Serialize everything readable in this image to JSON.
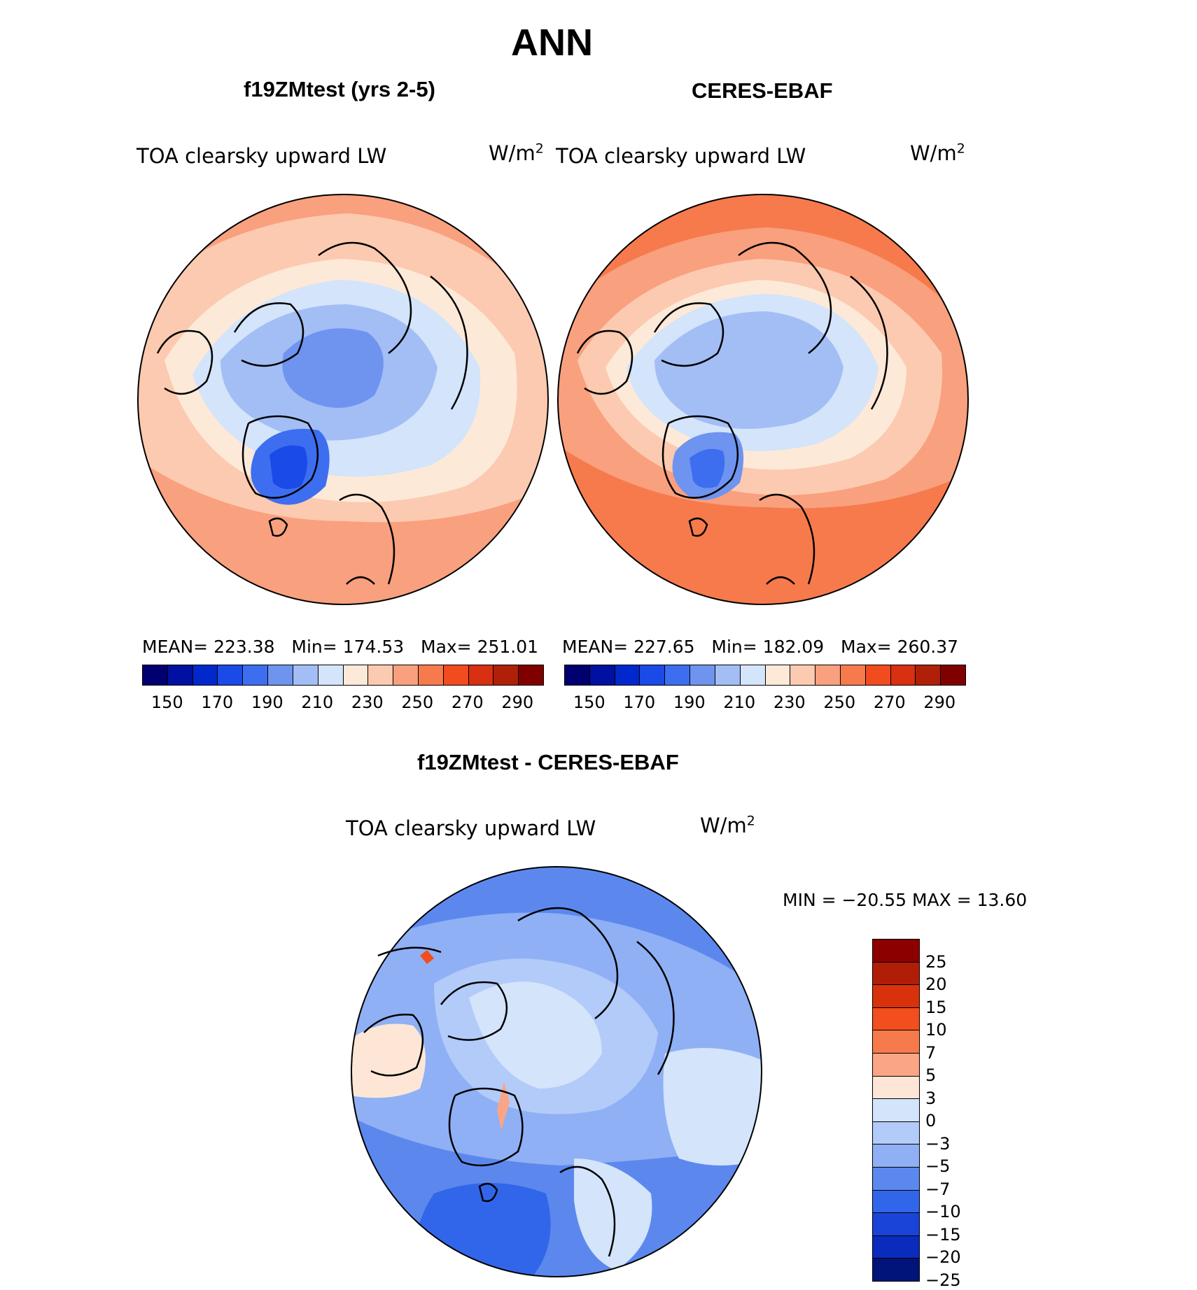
{
  "title": "ANN",
  "panels": [
    {
      "id": "model",
      "title": "f19ZMtest (yrs 2-5)",
      "variable": "TOA clearsky upward LW",
      "units_base": "W/m",
      "units_exp": "2",
      "stats": {
        "mean_label": "MEAN=",
        "mean": "223.38",
        "min_label": "Min=",
        "min": "174.53",
        "max_label": "Max=",
        "max": "251.01"
      }
    },
    {
      "id": "obs",
      "title": "CERES-EBAF",
      "variable": "TOA clearsky upward LW",
      "units_base": "W/m",
      "units_exp": "2",
      "stats": {
        "mean_label": "MEAN=",
        "mean": "227.65",
        "min_label": "Min=",
        "min": "182.09",
        "max_label": "Max=",
        "max": "260.37"
      }
    }
  ],
  "abs_colorbar": {
    "colors": [
      "#000070",
      "#0010a0",
      "#0028cc",
      "#1a4ae8",
      "#3d6ef0",
      "#6f94f0",
      "#a3bef5",
      "#d3e4fb",
      "#fde9d8",
      "#fccab0",
      "#f9a07e",
      "#f67a4c",
      "#f24b1e",
      "#d83010",
      "#b02008",
      "#800000"
    ],
    "ticks": [
      "150",
      "170",
      "190",
      "210",
      "230",
      "250",
      "270",
      "290"
    ]
  },
  "diff": {
    "title": "f19ZMtest - CERES-EBAF",
    "variable": "TOA clearsky upward LW",
    "units_base": "W/m",
    "units_exp": "2",
    "minmax_text": "MIN = −20.55 MAX =   13.60"
  },
  "diff_colorbar": {
    "colors": [
      "#8c0000",
      "#b01e08",
      "#d8320c",
      "#f24e1e",
      "#f67a4c",
      "#f9a586",
      "#fde6d6",
      "#d3e4fb",
      "#b3cbf8",
      "#8fb0f5",
      "#5c88ee",
      "#3266ea",
      "#1a44d8",
      "#0a2cbc",
      "#00147a"
    ],
    "ticks": [
      "25",
      "20",
      "15",
      "10",
      "7",
      "5",
      "3",
      "0",
      "−3",
      "−5",
      "−7",
      "−10",
      "−15",
      "−20",
      "−25"
    ]
  }
}
